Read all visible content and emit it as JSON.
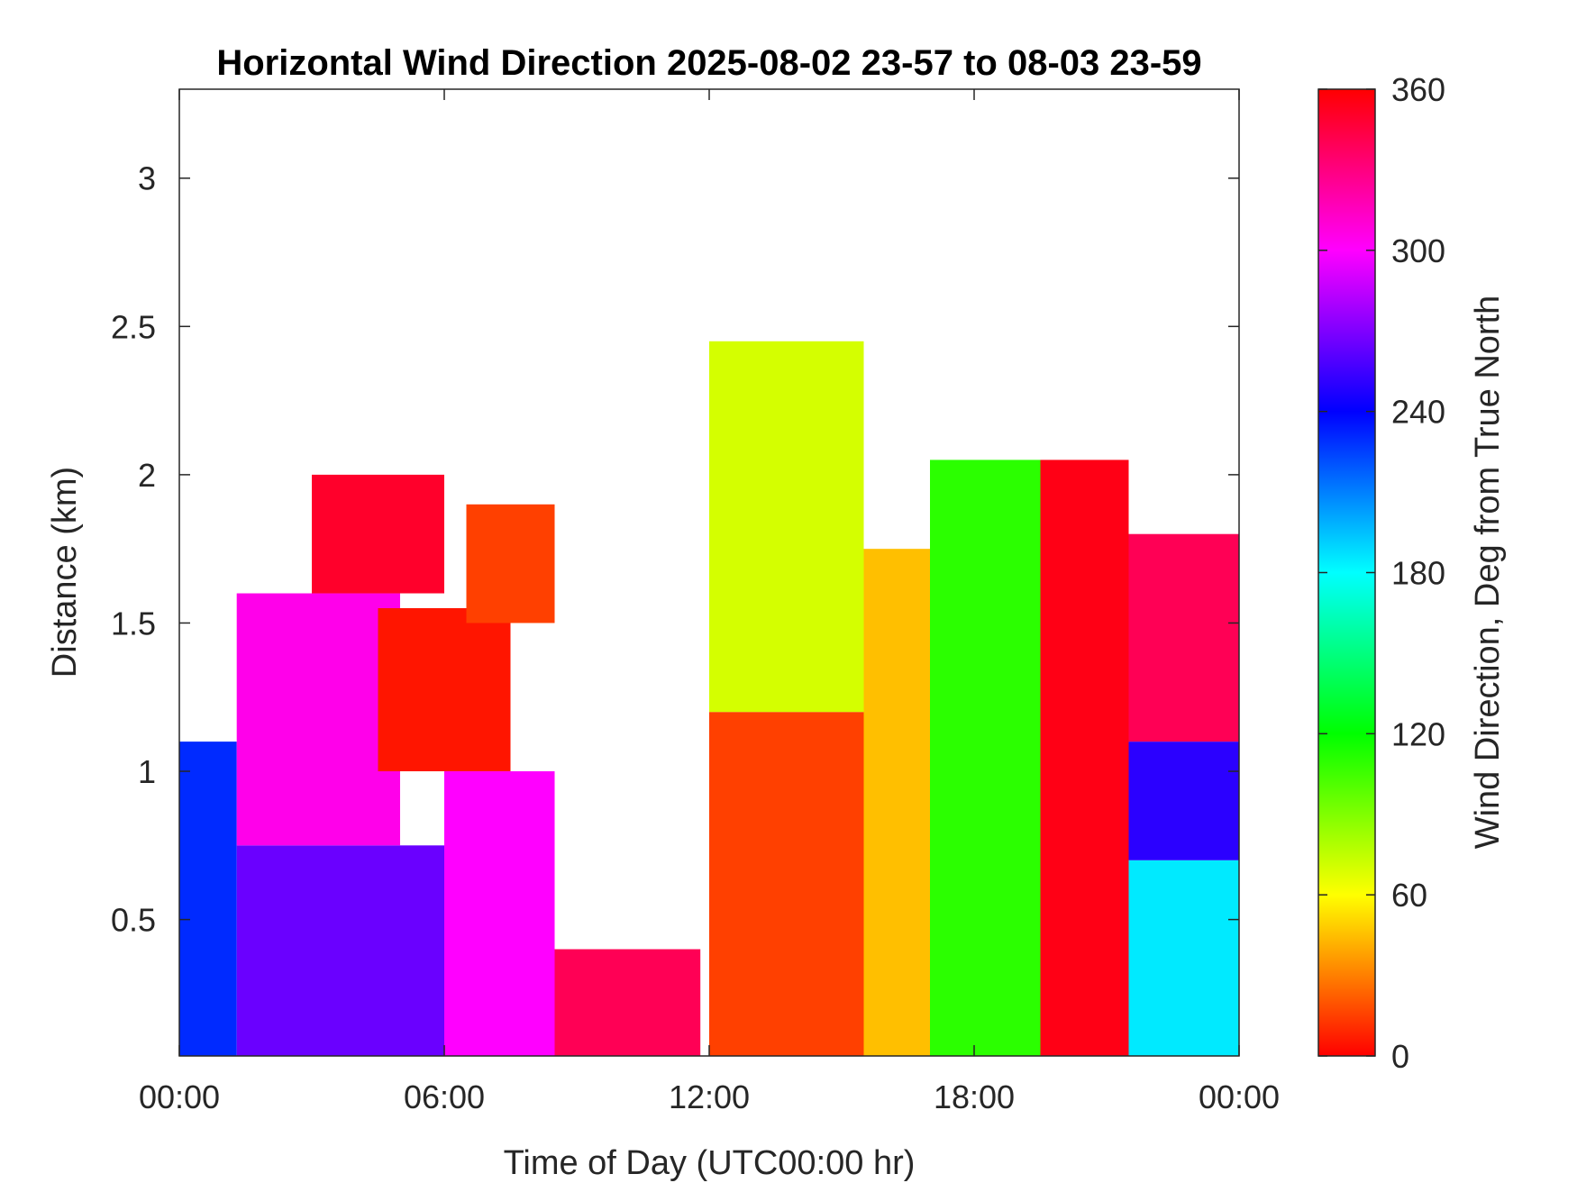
{
  "chart_data": {
    "type": "heatmap",
    "title": "Horizontal Wind Direction 2025-08-02 23-57 to 08-03 23-59",
    "xlabel": "Time of Day (UTC00:00 hr)",
    "ylabel": "Distance (km)",
    "xlim": [
      0,
      24
    ],
    "ylim": [
      0.04,
      3.3
    ],
    "x_ticks": [
      {
        "value": 0,
        "label": "00:00"
      },
      {
        "value": 6,
        "label": "06:00"
      },
      {
        "value": 12,
        "label": "12:00"
      },
      {
        "value": 18,
        "label": "18:00"
      },
      {
        "value": 24,
        "label": "00:00"
      }
    ],
    "y_ticks": [
      {
        "value": 0.5,
        "label": "0.5"
      },
      {
        "value": 1,
        "label": "1"
      },
      {
        "value": 1.5,
        "label": "1.5"
      },
      {
        "value": 2,
        "label": "2"
      },
      {
        "value": 2.5,
        "label": "2.5"
      },
      {
        "value": 3,
        "label": "3"
      }
    ],
    "colorbar": {
      "label": "Wind Direction, Deg from True North",
      "range": [
        0,
        360
      ],
      "ticks": [
        {
          "value": 0,
          "label": "0"
        },
        {
          "value": 60,
          "label": "60"
        },
        {
          "value": 120,
          "label": "120"
        },
        {
          "value": 180,
          "label": "180"
        },
        {
          "value": 240,
          "label": "240"
        },
        {
          "value": 300,
          "label": "300"
        },
        {
          "value": 360,
          "label": "360"
        }
      ],
      "colormap": "hsv"
    },
    "grid": false,
    "regions": [
      {
        "x": [
          0.0,
          1.3
        ],
        "y": [
          0.04,
          1.1
        ],
        "direction_deg": 230
      },
      {
        "x": [
          1.3,
          6.0
        ],
        "y": [
          0.04,
          0.75
        ],
        "direction_deg": 265
      },
      {
        "x": [
          1.3,
          5.0
        ],
        "y": [
          0.75,
          1.6
        ],
        "direction_deg": 305
      },
      {
        "x": [
          3.0,
          6.0
        ],
        "y": [
          1.6,
          2.0
        ],
        "direction_deg": 350
      },
      {
        "x": [
          4.5,
          7.5
        ],
        "y": [
          1.0,
          1.55
        ],
        "direction_deg": 5
      },
      {
        "x": [
          6.0,
          8.5
        ],
        "y": [
          0.04,
          1.0
        ],
        "direction_deg": 300
      },
      {
        "x": [
          6.5,
          8.5
        ],
        "y": [
          1.5,
          1.9
        ],
        "direction_deg": 15
      },
      {
        "x": [
          8.5,
          11.8
        ],
        "y": [
          0.04,
          0.4
        ],
        "direction_deg": 340
      },
      {
        "x": [
          12.0,
          15.5
        ],
        "y": [
          0.04,
          1.2
        ],
        "direction_deg": 15
      },
      {
        "x": [
          12.0,
          15.5
        ],
        "y": [
          1.2,
          2.45
        ],
        "direction_deg": 70
      },
      {
        "x": [
          15.5,
          17.0
        ],
        "y": [
          0.04,
          1.75
        ],
        "direction_deg": 45
      },
      {
        "x": [
          17.0,
          19.5
        ],
        "y": [
          0.04,
          2.05
        ],
        "direction_deg": 110
      },
      {
        "x": [
          19.5,
          21.5
        ],
        "y": [
          0.04,
          2.05
        ],
        "direction_deg": 355
      },
      {
        "x": [
          21.5,
          24.0
        ],
        "y": [
          0.04,
          0.7
        ],
        "direction_deg": 185
      },
      {
        "x": [
          21.5,
          24.0
        ],
        "y": [
          0.7,
          1.1
        ],
        "direction_deg": 250
      },
      {
        "x": [
          21.5,
          24.0
        ],
        "y": [
          1.1,
          1.8
        ],
        "direction_deg": 340
      }
    ],
    "gaps": [
      {
        "x": [
          11.8,
          12.0
        ],
        "y": [
          0.04,
          3.3
        ]
      },
      {
        "x": [
          8.5,
          11.8
        ],
        "y": [
          0.4,
          3.3
        ]
      },
      {
        "x": [
          15.5,
          24.0
        ],
        "y": [
          2.05,
          3.3
        ]
      },
      {
        "x": [
          0.0,
          12.0
        ],
        "y": [
          2.5,
          3.3
        ]
      }
    ]
  }
}
